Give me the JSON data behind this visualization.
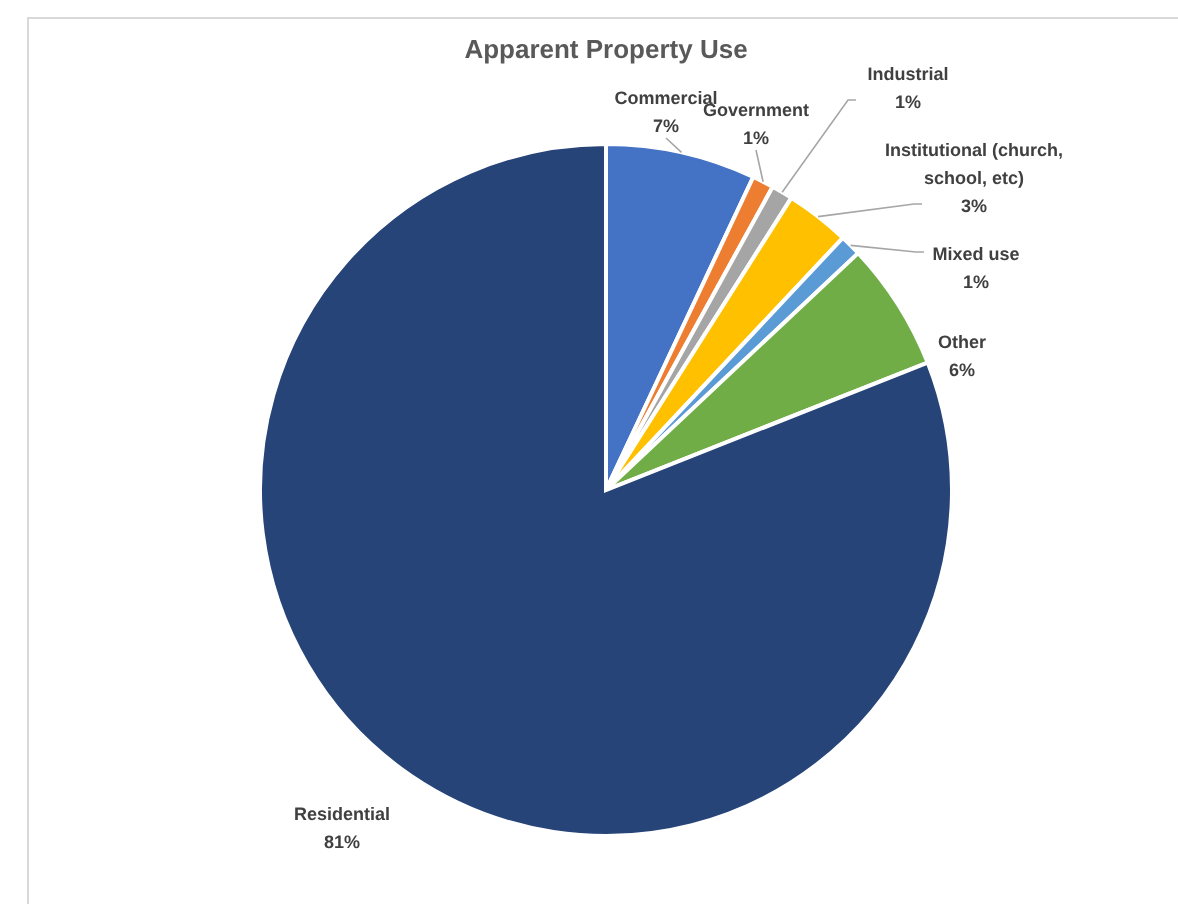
{
  "chart_data": {
    "type": "pie",
    "title": "Apparent Property Use",
    "categories": [
      "Commercial",
      "Government",
      "Industrial",
      "Institutional (church, school, etc)",
      "Mixed use",
      "Other",
      "Residential"
    ],
    "values": [
      7,
      1,
      1,
      3,
      1,
      6,
      81
    ],
    "colors": [
      "#4472c4",
      "#ed7d31",
      "#a5a5a5",
      "#ffc000",
      "#5b9bd5",
      "#70ad47",
      "#264478"
    ],
    "value_labels": [
      "7%",
      "1%",
      "1%",
      "3%",
      "1%",
      "6%",
      "81%"
    ]
  }
}
